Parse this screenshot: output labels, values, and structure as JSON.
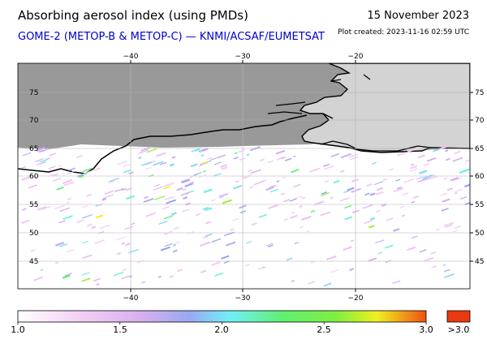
{
  "header": {
    "title": "Absorbing aerosol index (using PMDs)",
    "date": "15 November 2023",
    "subtitle": "GOME-2 (METOP-B & METOP-C) — KNMI/ACSAF/EUMETSAT",
    "plot_created": "Plot created: 2023-11-16 02:59 UTC"
  },
  "colors": {
    "subtitle": "#0000cc",
    "no_data": "#999999",
    "land": "#d3d3d3",
    "coast": "#000000",
    "grid": "#b0b0b0"
  },
  "map": {
    "lon_range": [
      -50,
      10
    ],
    "lat_range": [
      40,
      80
    ],
    "lon_ticks": [
      -40,
      -30,
      -20
    ],
    "lat_ticks": [
      45,
      50,
      55,
      60,
      65,
      70,
      75
    ],
    "lon_tick_labels": [
      "−40",
      "−30",
      "−20"
    ],
    "lat_tick_labels": [
      "45",
      "50",
      "55",
      "60",
      "65",
      "70",
      "75"
    ]
  },
  "colorbar": {
    "ticks": [
      "1.0",
      "1.5",
      "2.0",
      "2.5",
      "3.0"
    ],
    "overflow_label": ">3.0",
    "range": [
      1.0,
      3.0
    ],
    "overflow_color": "#e83a10"
  }
}
